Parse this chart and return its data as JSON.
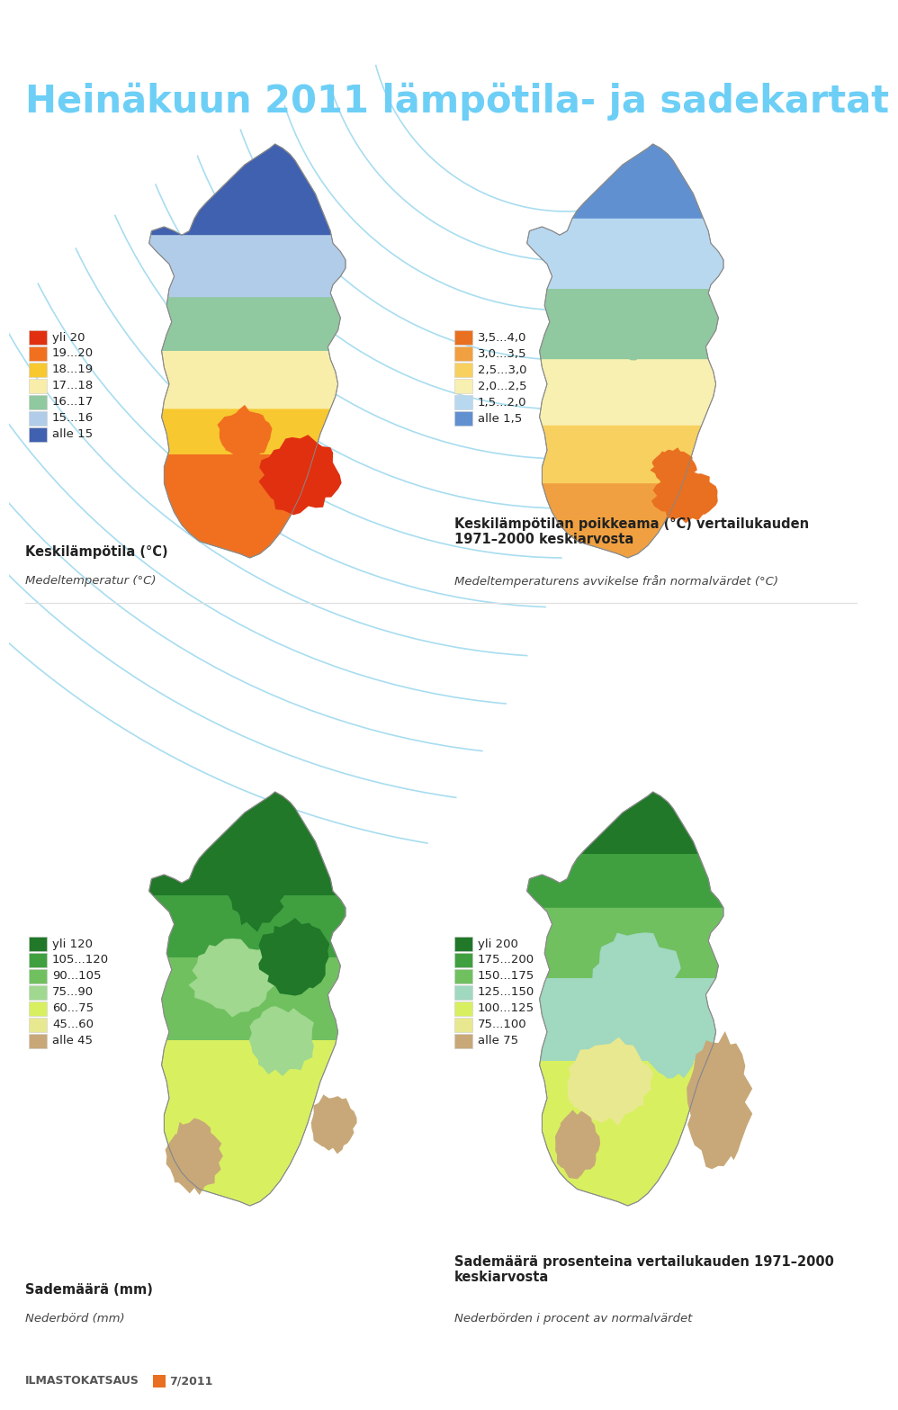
{
  "title": "Heinäkuun 2011 lämpötila- ja sadekartat",
  "title_color": "#6dcff6",
  "bg_color": "#ffffff",
  "arc_color": "#a8ddf0",
  "legend1_items": [
    {
      "label": "yli 20",
      "color": "#e03010"
    },
    {
      "label": "19...20",
      "color": "#f07020"
    },
    {
      "label": "18...19",
      "color": "#f8c830"
    },
    {
      "label": "17...18",
      "color": "#f8eeaa"
    },
    {
      "label": "16...17",
      "color": "#90c8a0"
    },
    {
      "label": "15...16",
      "color": "#b0cce8"
    },
    {
      "label": "alle 15",
      "color": "#4060b0"
    }
  ],
  "legend2_items": [
    {
      "label": "3,5...4,0",
      "color": "#e87020"
    },
    {
      "label": "3,0...3,5",
      "color": "#f0a040"
    },
    {
      "label": "2,5...3,0",
      "color": "#f8d060"
    },
    {
      "label": "2,0...2,5",
      "color": "#f8f0b0"
    },
    {
      "label": "1,5...2,0",
      "color": "#b8d8f0"
    },
    {
      "label": "alle 1,5",
      "color": "#6090d0"
    }
  ],
  "legend3_items": [
    {
      "label": "yli 120",
      "color": "#207828"
    },
    {
      "label": "105...120",
      "color": "#40a040"
    },
    {
      "label": "90...105",
      "color": "#70c060"
    },
    {
      "label": "75...90",
      "color": "#a0d890"
    },
    {
      "label": "60...75",
      "color": "#d8f060"
    },
    {
      "label": "45...60",
      "color": "#e8e890"
    },
    {
      "label": "alle 45",
      "color": "#c8a878"
    }
  ],
  "legend4_items": [
    {
      "label": "yli 200",
      "color": "#207828"
    },
    {
      "label": "175...200",
      "color": "#40a040"
    },
    {
      "label": "150...175",
      "color": "#70c060"
    },
    {
      "label": "125...150",
      "color": "#a0d8c0"
    },
    {
      "label": "100...125",
      "color": "#d8f060"
    },
    {
      "label": "75...100",
      "color": "#e8e890"
    },
    {
      "label": "alle 75",
      "color": "#c8a878"
    }
  ],
  "caption1_fi": "Keskilämpötila (°C)",
  "caption1_sv": "Medeltemperatur (°C)",
  "caption2_fi": "Keskilämpötilan poikkeama (°C) vertailukauden\n1971–2000 keskiarvosta",
  "caption2_sv": "Medeltemperaturens avvikelse från normalvärdet (°C)",
  "caption3_fi": "Sademäärä (mm)",
  "caption3_sv": "Nederbörd (mm)",
  "caption4_fi": "Sademäärä prosenteina vertailukauden 1971–2000\nkeskiarvosta",
  "caption4_sv": "Nederbörden i procent av normalvärdet",
  "footer": "ILMASTOKATSAUS",
  "footer2": "7/2011",
  "text_color": "#222222",
  "label_color": "#222222"
}
